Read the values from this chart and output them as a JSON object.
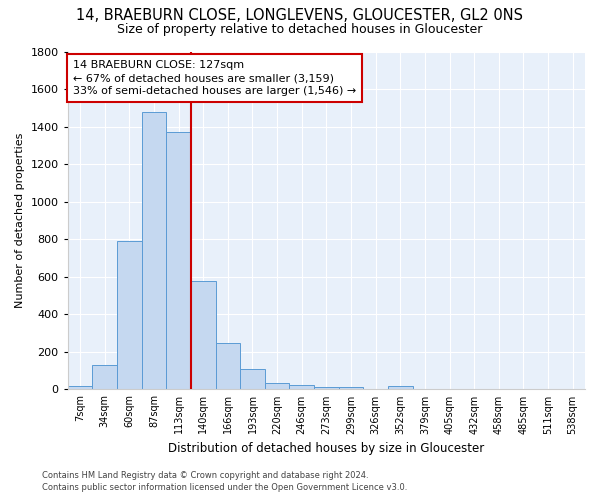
{
  "title": "14, BRAEBURN CLOSE, LONGLEVENS, GLOUCESTER, GL2 0NS",
  "subtitle": "Size of property relative to detached houses in Gloucester",
  "xlabel": "Distribution of detached houses by size in Gloucester",
  "ylabel": "Number of detached properties",
  "bar_labels": [
    "7sqm",
    "34sqm",
    "60sqm",
    "87sqm",
    "113sqm",
    "140sqm",
    "166sqm",
    "193sqm",
    "220sqm",
    "246sqm",
    "273sqm",
    "299sqm",
    "326sqm",
    "352sqm",
    "379sqm",
    "405sqm",
    "432sqm",
    "458sqm",
    "485sqm",
    "511sqm",
    "538sqm"
  ],
  "bar_heights": [
    20,
    130,
    790,
    1480,
    1370,
    575,
    245,
    110,
    35,
    25,
    15,
    15,
    0,
    20,
    0,
    0,
    0,
    0,
    0,
    0,
    0
  ],
  "bar_color": "#c5d8f0",
  "bar_edge_color": "#5b9bd5",
  "fig_bg_color": "#ffffff",
  "ax_bg_color": "#e8f0fa",
  "grid_color": "#ffffff",
  "vline_color": "#cc0000",
  "annotation_text": "14 BRAEBURN CLOSE: 127sqm\n← 67% of detached houses are smaller (3,159)\n33% of semi-detached houses are larger (1,546) →",
  "annotation_box_facecolor": "#ffffff",
  "annotation_edge_color": "#cc0000",
  "ylim": [
    0,
    1800
  ],
  "yticks": [
    0,
    200,
    400,
    600,
    800,
    1000,
    1200,
    1400,
    1600,
    1800
  ],
  "footer_line1": "Contains HM Land Registry data © Crown copyright and database right 2024.",
  "footer_line2": "Contains public sector information licensed under the Open Government Licence v3.0."
}
